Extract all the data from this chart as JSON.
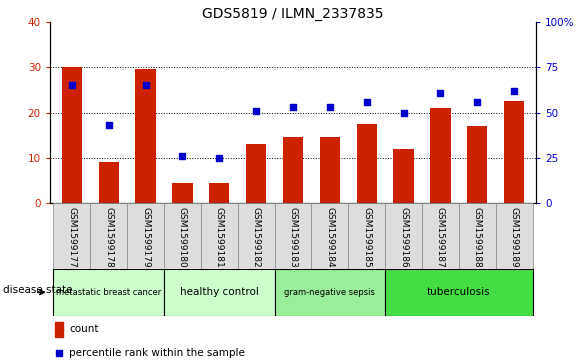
{
  "title": "GDS5819 / ILMN_2337835",
  "samples": [
    "GSM1599177",
    "GSM1599178",
    "GSM1599179",
    "GSM1599180",
    "GSM1599181",
    "GSM1599182",
    "GSM1599183",
    "GSM1599184",
    "GSM1599185",
    "GSM1599186",
    "GSM1599187",
    "GSM1599188",
    "GSM1599189"
  ],
  "counts": [
    30,
    9,
    29.5,
    4.5,
    4.5,
    13,
    14.5,
    14.5,
    17.5,
    12,
    21,
    17,
    22.5
  ],
  "percentiles": [
    65,
    43,
    65,
    26,
    25,
    51,
    53,
    53,
    56,
    50,
    61,
    56,
    62
  ],
  "bar_color": "#cc2200",
  "dot_color": "#0000cc",
  "ylim_left": [
    0,
    40
  ],
  "ylim_right": [
    0,
    100
  ],
  "yticks_left": [
    0,
    10,
    20,
    30,
    40
  ],
  "yticks_right": [
    0,
    25,
    50,
    75,
    100
  ],
  "ytick_labels_right": [
    "0",
    "25",
    "50",
    "75",
    "100%"
  ],
  "disease_groups": [
    {
      "label": "metastatic breast cancer",
      "start": 0,
      "end": 3,
      "color": "#ccffcc"
    },
    {
      "label": "healthy control",
      "start": 3,
      "end": 6,
      "color": "#ccffcc"
    },
    {
      "label": "gram-negative sepsis",
      "start": 6,
      "end": 9,
      "color": "#99ee99"
    },
    {
      "label": "tuberculosis",
      "start": 9,
      "end": 13,
      "color": "#44dd44"
    }
  ],
  "sample_box_color": "#dddddd",
  "disease_state_label": "disease state",
  "legend_bar_label": "count",
  "legend_dot_label": "percentile rank within the sample",
  "tick_label_color_left": "#cc2200",
  "tick_label_color_right": "#0000cc"
}
